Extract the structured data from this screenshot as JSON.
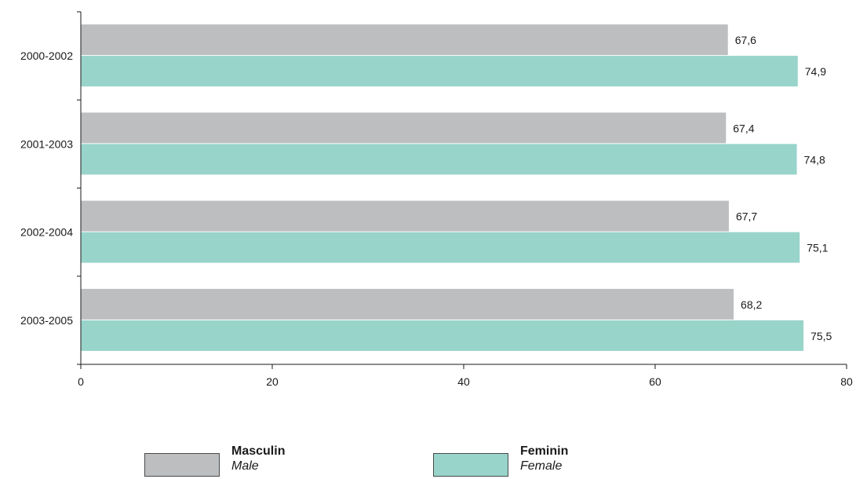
{
  "chart_data": {
    "type": "bar",
    "orientation": "horizontal",
    "categories": [
      "2000-2002",
      "2001-2003",
      "2002-2004",
      "2003-2005"
    ],
    "series": [
      {
        "name": "Masculin",
        "name_en": "Male",
        "values": [
          67.6,
          67.4,
          67.7,
          68.2
        ],
        "value_labels": [
          "67,6",
          "67,4",
          "67,7",
          "68,2"
        ],
        "color": "#bcbec0"
      },
      {
        "name": "Feminin",
        "name_en": "Female",
        "values": [
          74.9,
          74.8,
          75.1,
          75.5
        ],
        "value_labels": [
          "74,9",
          "74,8",
          "75,1",
          "75,5"
        ],
        "color": "#98d4ca"
      }
    ],
    "xlim": [
      0,
      80
    ],
    "xticks": [
      0,
      20,
      40,
      60,
      80
    ],
    "title": "",
    "xlabel": "",
    "ylabel": "",
    "grid": false,
    "legend_position": "bottom"
  },
  "legend": [
    {
      "label": "Masculin",
      "sublabel": "Male",
      "color": "#bcbec0"
    },
    {
      "label": "Feminin",
      "sublabel": "Female",
      "color": "#98d4ca"
    }
  ]
}
